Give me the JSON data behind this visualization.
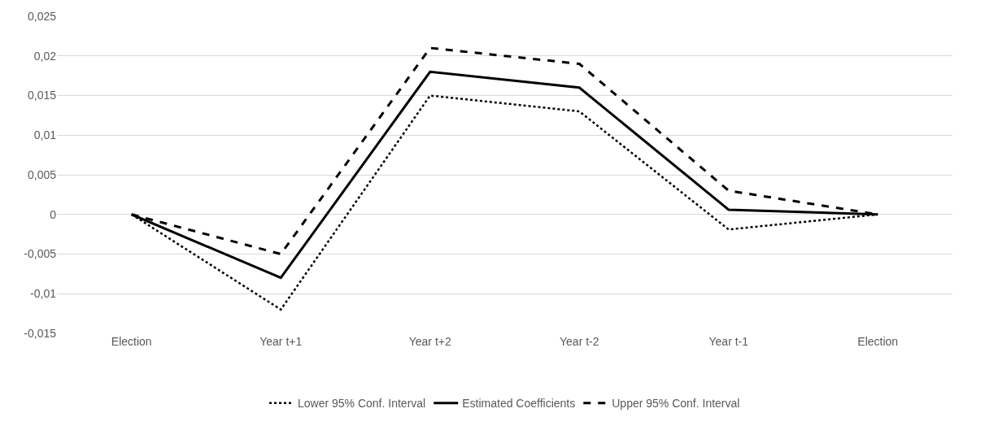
{
  "chart_data": {
    "type": "line",
    "categories": [
      "Election",
      "Year t+1",
      "Year t+2",
      "Year t-2",
      "Year t-1",
      "Election"
    ],
    "series": [
      {
        "name": "Lower 95% Conf. Interval",
        "color": "#000000",
        "line_style": "dotted",
        "values": [
          0,
          -0.012,
          0.015,
          0.013,
          -0.0019,
          0
        ]
      },
      {
        "name": "Estimated Coefficients",
        "color": "#000000",
        "line_style": "solid",
        "values": [
          0,
          -0.008,
          0.018,
          0.016,
          0.0006,
          0
        ]
      },
      {
        "name": "Upper 95% Conf. Interval",
        "color": "#000000",
        "line_style": "dashed",
        "values": [
          0,
          -0.005,
          0.021,
          0.019,
          0.003,
          0
        ]
      }
    ],
    "ylim": [
      -0.015,
      0.025
    ],
    "yticks": [
      {
        "value": -0.015,
        "label": "-0,015"
      },
      {
        "value": -0.01,
        "label": "-0,01"
      },
      {
        "value": -0.005,
        "label": "-0,005"
      },
      0,
      {
        "value": 0.005,
        "label": "0,005"
      },
      {
        "value": 0.01,
        "label": "0,01"
      },
      {
        "value": 0.015,
        "label": "0,015"
      },
      {
        "value": 0.02,
        "label": "0,02"
      },
      {
        "value": 0.025,
        "label": "0,025"
      }
    ],
    "grid": "y",
    "legend": "bottom"
  }
}
